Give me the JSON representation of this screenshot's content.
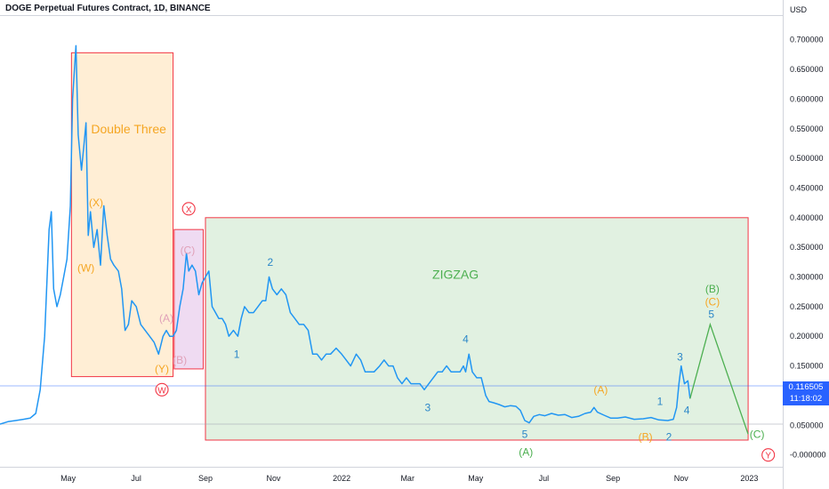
{
  "header": {
    "title": "DOGE Perpetual Futures Contract, 1D, BINANCE"
  },
  "price_tag": {
    "price": "0.116505",
    "countdown": "11:18:02"
  },
  "colors": {
    "price_line": "#2196f3",
    "orange_box_fill": "#ffe0b2",
    "orange_box_stroke": "#f23645",
    "purple_box_fill": "#e1bee7",
    "green_box_fill": "#c8e6c9",
    "green_box_stroke": "#f23645",
    "orange_label": "#f5a623",
    "pink_label": "#e0a0b8",
    "blue_label": "#2a86c8",
    "green_label": "#4caf50",
    "red_label": "#f23645",
    "price_tag_bg": "#2962ff"
  },
  "chart_data": {
    "type": "line",
    "title": "DOGE Perpetual Futures Contract, 1D, BINANCE",
    "xlabel": "",
    "ylabel": "",
    "currency": "USD",
    "ylim": [
      -0.02,
      0.74
    ],
    "xlim": [
      "2021-03-01",
      "2023-01-31"
    ],
    "grid": false,
    "x_ticks": [
      {
        "date": "2021-05-01",
        "label": "May"
      },
      {
        "date": "2021-07-01",
        "label": "Jul"
      },
      {
        "date": "2021-09-01",
        "label": "Sep"
      },
      {
        "date": "2021-11-01",
        "label": "Nov"
      },
      {
        "date": "2022-01-01",
        "label": "2022"
      },
      {
        "date": "2022-03-01",
        "label": "Mar"
      },
      {
        "date": "2022-05-01",
        "label": "May"
      },
      {
        "date": "2022-07-01",
        "label": "Jul"
      },
      {
        "date": "2022-09-01",
        "label": "Sep"
      },
      {
        "date": "2022-11-01",
        "label": "Nov"
      },
      {
        "date": "2023-01-01",
        "label": "2023"
      }
    ],
    "y_ticks": [
      {
        "value": 0.7,
        "label": "0.700000"
      },
      {
        "value": 0.65,
        "label": "0.650000"
      },
      {
        "value": 0.6,
        "label": "0.600000"
      },
      {
        "value": 0.55,
        "label": "0.550000"
      },
      {
        "value": 0.5,
        "label": "0.500000"
      },
      {
        "value": 0.45,
        "label": "0.450000"
      },
      {
        "value": 0.4,
        "label": "0.400000"
      },
      {
        "value": 0.35,
        "label": "0.350000"
      },
      {
        "value": 0.3,
        "label": "0.300000"
      },
      {
        "value": 0.25,
        "label": "0.250000"
      },
      {
        "value": 0.2,
        "label": "0.200000"
      },
      {
        "value": 0.15,
        "label": "0.150000"
      },
      {
        "value": 0.1,
        "label": "0.100000"
      },
      {
        "value": 0.05,
        "label": "0.050000"
      },
      {
        "value": 0.0,
        "label": "-0.000000"
      }
    ],
    "series": [
      {
        "points": [
          [
            "2021-03-01",
            0.052
          ],
          [
            "2021-03-08",
            0.056
          ],
          [
            "2021-03-15",
            0.058
          ],
          [
            "2021-03-22",
            0.06
          ],
          [
            "2021-03-28",
            0.062
          ],
          [
            "2021-04-02",
            0.07
          ],
          [
            "2021-04-06",
            0.11
          ],
          [
            "2021-04-10",
            0.2
          ],
          [
            "2021-04-14",
            0.38
          ],
          [
            "2021-04-16",
            0.41
          ],
          [
            "2021-04-18",
            0.28
          ],
          [
            "2021-04-21",
            0.25
          ],
          [
            "2021-04-24",
            0.27
          ],
          [
            "2021-04-27",
            0.3
          ],
          [
            "2021-04-30",
            0.33
          ],
          [
            "2021-05-03",
            0.42
          ],
          [
            "2021-05-05",
            0.6
          ],
          [
            "2021-05-07",
            0.66
          ],
          [
            "2021-05-08",
            0.69
          ],
          [
            "2021-05-10",
            0.54
          ],
          [
            "2021-05-13",
            0.48
          ],
          [
            "2021-05-15",
            0.52
          ],
          [
            "2021-05-17",
            0.56
          ],
          [
            "2021-05-19",
            0.37
          ],
          [
            "2021-05-21",
            0.41
          ],
          [
            "2021-05-24",
            0.35
          ],
          [
            "2021-05-27",
            0.38
          ],
          [
            "2021-05-30",
            0.32
          ],
          [
            "2021-06-02",
            0.42
          ],
          [
            "2021-06-05",
            0.37
          ],
          [
            "2021-06-08",
            0.33
          ],
          [
            "2021-06-11",
            0.32
          ],
          [
            "2021-06-15",
            0.31
          ],
          [
            "2021-06-18",
            0.28
          ],
          [
            "2021-06-21",
            0.21
          ],
          [
            "2021-06-24",
            0.22
          ],
          [
            "2021-06-27",
            0.26
          ],
          [
            "2021-07-01",
            0.25
          ],
          [
            "2021-07-05",
            0.22
          ],
          [
            "2021-07-09",
            0.21
          ],
          [
            "2021-07-13",
            0.2
          ],
          [
            "2021-07-17",
            0.19
          ],
          [
            "2021-07-21",
            0.17
          ],
          [
            "2021-07-25",
            0.2
          ],
          [
            "2021-07-28",
            0.21
          ],
          [
            "2021-07-31",
            0.2
          ],
          [
            "2021-08-03",
            0.2
          ],
          [
            "2021-08-06",
            0.21
          ],
          [
            "2021-08-09",
            0.25
          ],
          [
            "2021-08-12",
            0.28
          ],
          [
            "2021-08-15",
            0.34
          ],
          [
            "2021-08-17",
            0.31
          ],
          [
            "2021-08-20",
            0.32
          ],
          [
            "2021-08-23",
            0.31
          ],
          [
            "2021-08-26",
            0.27
          ],
          [
            "2021-08-29",
            0.29
          ],
          [
            "2021-09-01",
            0.3
          ],
          [
            "2021-09-04",
            0.31
          ],
          [
            "2021-09-07",
            0.25
          ],
          [
            "2021-09-10",
            0.24
          ],
          [
            "2021-09-13",
            0.23
          ],
          [
            "2021-09-16",
            0.23
          ],
          [
            "2021-09-19",
            0.22
          ],
          [
            "2021-09-22",
            0.2
          ],
          [
            "2021-09-26",
            0.21
          ],
          [
            "2021-09-30",
            0.2
          ],
          [
            "2021-10-03",
            0.23
          ],
          [
            "2021-10-06",
            0.25
          ],
          [
            "2021-10-10",
            0.24
          ],
          [
            "2021-10-14",
            0.24
          ],
          [
            "2021-10-18",
            0.25
          ],
          [
            "2021-10-22",
            0.26
          ],
          [
            "2021-10-25",
            0.26
          ],
          [
            "2021-10-28",
            0.3
          ],
          [
            "2021-10-31",
            0.28
          ],
          [
            "2021-11-04",
            0.27
          ],
          [
            "2021-11-08",
            0.28
          ],
          [
            "2021-11-12",
            0.27
          ],
          [
            "2021-11-16",
            0.24
          ],
          [
            "2021-11-20",
            0.23
          ],
          [
            "2021-11-24",
            0.22
          ],
          [
            "2021-11-28",
            0.22
          ],
          [
            "2021-12-02",
            0.21
          ],
          [
            "2021-12-06",
            0.17
          ],
          [
            "2021-12-10",
            0.17
          ],
          [
            "2021-12-14",
            0.16
          ],
          [
            "2021-12-18",
            0.17
          ],
          [
            "2021-12-22",
            0.17
          ],
          [
            "2021-12-27",
            0.18
          ],
          [
            "2022-01-01",
            0.17
          ],
          [
            "2022-01-05",
            0.16
          ],
          [
            "2022-01-09",
            0.15
          ],
          [
            "2022-01-14",
            0.17
          ],
          [
            "2022-01-18",
            0.16
          ],
          [
            "2022-01-22",
            0.14
          ],
          [
            "2022-01-26",
            0.14
          ],
          [
            "2022-01-30",
            0.14
          ],
          [
            "2022-02-04",
            0.15
          ],
          [
            "2022-02-08",
            0.16
          ],
          [
            "2022-02-12",
            0.15
          ],
          [
            "2022-02-16",
            0.15
          ],
          [
            "2022-02-20",
            0.13
          ],
          [
            "2022-02-24",
            0.12
          ],
          [
            "2022-02-28",
            0.13
          ],
          [
            "2022-03-04",
            0.12
          ],
          [
            "2022-03-08",
            0.12
          ],
          [
            "2022-03-12",
            0.12
          ],
          [
            "2022-03-16",
            0.11
          ],
          [
            "2022-03-20",
            0.12
          ],
          [
            "2022-03-24",
            0.13
          ],
          [
            "2022-03-28",
            0.14
          ],
          [
            "2022-04-01",
            0.14
          ],
          [
            "2022-04-05",
            0.15
          ],
          [
            "2022-04-09",
            0.14
          ],
          [
            "2022-04-13",
            0.14
          ],
          [
            "2022-04-17",
            0.14
          ],
          [
            "2022-04-20",
            0.15
          ],
          [
            "2022-04-22",
            0.14
          ],
          [
            "2022-04-25",
            0.17
          ],
          [
            "2022-04-28",
            0.14
          ],
          [
            "2022-05-02",
            0.13
          ],
          [
            "2022-05-06",
            0.13
          ],
          [
            "2022-05-10",
            0.1
          ],
          [
            "2022-05-13",
            0.09
          ],
          [
            "2022-05-17",
            0.088
          ],
          [
            "2022-05-22",
            0.085
          ],
          [
            "2022-05-27",
            0.081
          ],
          [
            "2022-06-01",
            0.083
          ],
          [
            "2022-06-06",
            0.082
          ],
          [
            "2022-06-10",
            0.075
          ],
          [
            "2022-06-14",
            0.058
          ],
          [
            "2022-06-18",
            0.054
          ],
          [
            "2022-06-22",
            0.065
          ],
          [
            "2022-06-27",
            0.068
          ],
          [
            "2022-07-02",
            0.066
          ],
          [
            "2022-07-08",
            0.07
          ],
          [
            "2022-07-14",
            0.067
          ],
          [
            "2022-07-20",
            0.068
          ],
          [
            "2022-07-26",
            0.063
          ],
          [
            "2022-08-01",
            0.065
          ],
          [
            "2022-08-07",
            0.07
          ],
          [
            "2022-08-12",
            0.072
          ],
          [
            "2022-08-15",
            0.08
          ],
          [
            "2022-08-18",
            0.072
          ],
          [
            "2022-08-24",
            0.067
          ],
          [
            "2022-08-30",
            0.062
          ],
          [
            "2022-09-05",
            0.062
          ],
          [
            "2022-09-12",
            0.064
          ],
          [
            "2022-09-20",
            0.06
          ],
          [
            "2022-09-28",
            0.061
          ],
          [
            "2022-10-05",
            0.063
          ],
          [
            "2022-10-12",
            0.059
          ],
          [
            "2022-10-20",
            0.058
          ],
          [
            "2022-10-25",
            0.06
          ],
          [
            "2022-10-28",
            0.08
          ],
          [
            "2022-10-30",
            0.12
          ],
          [
            "2022-11-01",
            0.15
          ],
          [
            "2022-11-04",
            0.12
          ],
          [
            "2022-11-07",
            0.125
          ],
          [
            "2022-11-09",
            0.095
          ]
        ]
      }
    ],
    "current_price_line": 0.1165,
    "reference_line": 0.052,
    "regions": [
      {
        "label": "Double Three",
        "x0": "2021-05-04",
        "x1": "2021-08-03",
        "y0": 0.132,
        "y1": 0.678,
        "fill": "orange"
      },
      {
        "label": "",
        "x0": "2021-08-04",
        "x1": "2021-08-30",
        "y0": 0.145,
        "y1": 0.38,
        "fill": "purple"
      },
      {
        "label": "ZIGZAG",
        "x0": "2021-09-01",
        "x1": "2022-12-31",
        "y0": 0.025,
        "y1": 0.4,
        "fill": "green"
      }
    ],
    "projection": [
      [
        "2022-11-09",
        0.095
      ],
      [
        "2022-11-27",
        0.22
      ],
      [
        "2022-12-31",
        0.035
      ]
    ],
    "annotations": [
      {
        "text": "(X)",
        "date": "2021-05-26",
        "y": 0.425,
        "color": "orange"
      },
      {
        "text": "(W)",
        "date": "2021-05-17",
        "y": 0.315,
        "color": "orange"
      },
      {
        "text": "(Y)",
        "date": "2021-07-24",
        "y": 0.145,
        "color": "orange"
      },
      {
        "text": "W",
        "date": "2021-07-24",
        "y": 0.11,
        "color": "red",
        "circled": true
      },
      {
        "text": "X",
        "date": "2021-08-17",
        "y": 0.415,
        "color": "red",
        "circled": true
      },
      {
        "text": "(C)",
        "date": "2021-08-16",
        "y": 0.345,
        "color": "pink"
      },
      {
        "text": "(A)",
        "date": "2021-07-28",
        "y": 0.23,
        "color": "pink"
      },
      {
        "text": "(B)",
        "date": "2021-08-09",
        "y": 0.16,
        "color": "pink"
      },
      {
        "text": "1",
        "date": "2021-09-29",
        "y": 0.17,
        "color": "blue"
      },
      {
        "text": "2",
        "date": "2021-10-29",
        "y": 0.325,
        "color": "blue"
      },
      {
        "text": "3",
        "date": "2022-03-19",
        "y": 0.08,
        "color": "blue"
      },
      {
        "text": "4",
        "date": "2022-04-22",
        "y": 0.195,
        "color": "blue"
      },
      {
        "text": "5",
        "date": "2022-06-14",
        "y": 0.035,
        "color": "blue"
      },
      {
        "text": "(A)",
        "date": "2022-06-15",
        "y": 0.005,
        "color": "green"
      },
      {
        "text": "(A)",
        "date": "2022-08-21",
        "y": 0.11,
        "color": "orange"
      },
      {
        "text": "(B)",
        "date": "2022-09-30",
        "y": 0.03,
        "color": "orange"
      },
      {
        "text": "1",
        "date": "2022-10-13",
        "y": 0.09,
        "color": "blue"
      },
      {
        "text": "2",
        "date": "2022-10-21",
        "y": 0.03,
        "color": "blue"
      },
      {
        "text": "3",
        "date": "2022-10-31",
        "y": 0.165,
        "color": "blue"
      },
      {
        "text": "4",
        "date": "2022-11-06",
        "y": 0.075,
        "color": "blue"
      },
      {
        "text": "(B)",
        "date": "2022-11-29",
        "y": 0.28,
        "color": "green"
      },
      {
        "text": "(C)",
        "date": "2022-11-29",
        "y": 0.258,
        "color": "orange"
      },
      {
        "text": "5",
        "date": "2022-11-28",
        "y": 0.237,
        "color": "blue"
      },
      {
        "text": "(C)",
        "date": "2023-01-08",
        "y": 0.035,
        "color": "green"
      },
      {
        "text": "Y",
        "date": "2023-01-18",
        "y": 0.0,
        "color": "red",
        "circled": true
      }
    ]
  }
}
